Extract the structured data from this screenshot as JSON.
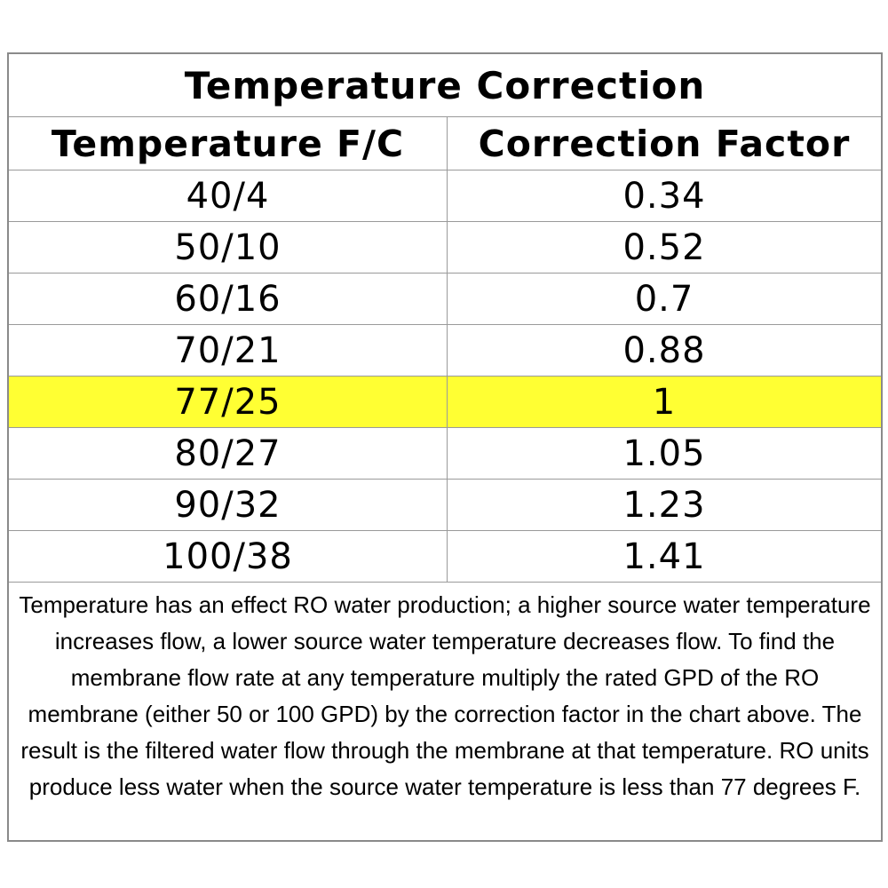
{
  "title": "Temperature Correction",
  "columns": {
    "temperature": "Temperature F/C",
    "factor": "Correction Factor"
  },
  "rows": [
    {
      "temperature": "40/4",
      "factor": "0.34",
      "highlighted": false
    },
    {
      "temperature": "50/10",
      "factor": "0.52",
      "highlighted": false
    },
    {
      "temperature": "60/16",
      "factor": "0.7",
      "highlighted": false
    },
    {
      "temperature": "70/21",
      "factor": "0.88",
      "highlighted": false
    },
    {
      "temperature": "77/25",
      "factor": "1",
      "highlighted": true
    },
    {
      "temperature": "80/27",
      "factor": "1.05",
      "highlighted": false
    },
    {
      "temperature": "90/32",
      "factor": "1.23",
      "highlighted": false
    },
    {
      "temperature": "100/38",
      "factor": "1.41",
      "highlighted": false
    }
  ],
  "highlight_color": "#ffff33",
  "note": "Temperature has an effect RO water production; a higher source water temperature increases flow, a lower source water temperature decreases flow. To find the membrane flow rate at any temperature multiply the rated GPD of the RO membrane (either 50 or 100 GPD) by the correction factor in the chart above. The result is the filtered water flow through the membrane at that temperature. RO units produce less water when the source water temperature is less than 77 degrees F."
}
